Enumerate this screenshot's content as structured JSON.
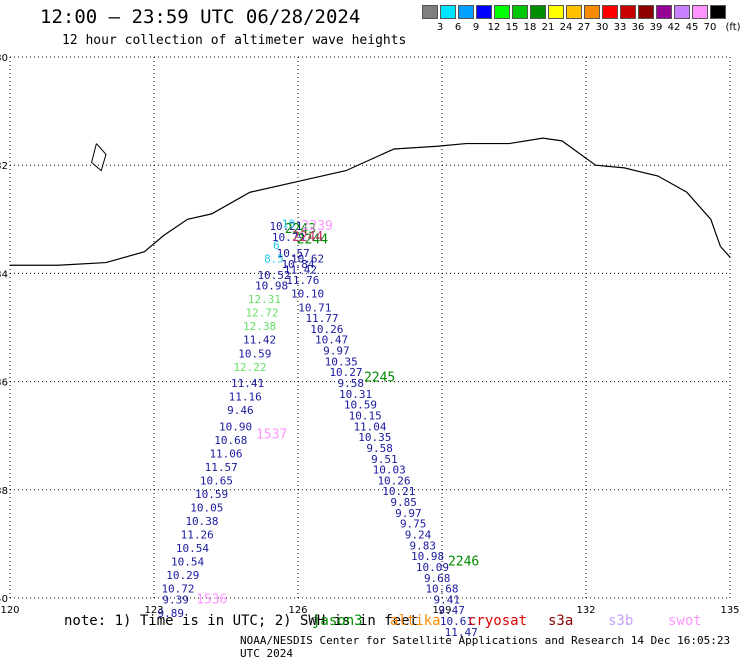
{
  "title": "12:00 – 23:59 UTC 06/28/2024",
  "subtitle": "12 hour collection of altimeter wave heights",
  "legend": {
    "unit": "(ft)",
    "bins": [
      {
        "label": "3",
        "color": "#7f7f7f"
      },
      {
        "label": "6",
        "color": "#00e5ff"
      },
      {
        "label": "9",
        "color": "#00a0ff"
      },
      {
        "label": "12",
        "color": "#0000ff"
      },
      {
        "label": "15",
        "color": "#00ff00"
      },
      {
        "label": "18",
        "color": "#00c800"
      },
      {
        "label": "21",
        "color": "#008c00"
      },
      {
        "label": "24",
        "color": "#ffff00"
      },
      {
        "label": "27",
        "color": "#ffc000"
      },
      {
        "label": "30",
        "color": "#ff8c00"
      },
      {
        "label": "33",
        "color": "#ff0000"
      },
      {
        "label": "36",
        "color": "#c80000"
      },
      {
        "label": "39",
        "color": "#8c0000"
      },
      {
        "label": "42",
        "color": "#960096"
      },
      {
        "label": "45",
        "color": "#c882ff"
      },
      {
        "label": "70",
        "color": "#ff96ff"
      },
      {
        "label": "",
        "color": "#000000"
      }
    ]
  },
  "axes": {
    "lat_labels": [
      "-30",
      "-32",
      "-34",
      "-36",
      "-38",
      "-40"
    ],
    "lon_labels": [
      "120",
      "123",
      "126",
      "129",
      "132",
      "135"
    ]
  },
  "map_data": {
    "lon_range": [
      120,
      135
    ],
    "lat_range": [
      -30,
      -40
    ],
    "gridlines": "dotted",
    "coastline": [
      [
        120.0,
        -33.85
      ],
      [
        121.0,
        -33.85
      ],
      [
        122.0,
        -33.8
      ],
      [
        122.8,
        -33.6
      ],
      [
        123.2,
        -33.3
      ],
      [
        123.7,
        -33.0
      ],
      [
        124.2,
        -32.9
      ],
      [
        125.0,
        -32.5
      ],
      [
        126.0,
        -32.3
      ],
      [
        127.0,
        -32.1
      ],
      [
        128.0,
        -31.7
      ],
      [
        128.9,
        -31.65
      ],
      [
        129.5,
        -31.6
      ],
      [
        130.4,
        -31.6
      ],
      [
        131.1,
        -31.5
      ],
      [
        131.5,
        -31.55
      ],
      [
        132.2,
        -32.0
      ],
      [
        132.8,
        -32.05
      ],
      [
        133.5,
        -32.2
      ],
      [
        134.1,
        -32.5
      ],
      [
        134.6,
        -33.0
      ],
      [
        134.8,
        -33.5
      ],
      [
        135.0,
        -33.7
      ]
    ],
    "island": [
      [
        121.8,
        -31.6
      ],
      [
        122.0,
        -31.8
      ],
      [
        121.9,
        -32.1
      ],
      [
        121.7,
        -31.95
      ],
      [
        121.8,
        -31.6
      ]
    ],
    "tracks": [
      {
        "satellite": "jason3",
        "color": "#1a1aa0",
        "points": [
          {
            "lon": 125.75,
            "lat": -33.2,
            "v": "10.21"
          },
          {
            "lon": 125.8,
            "lat": -33.4,
            "v": "10.79"
          },
          {
            "lon": 125.9,
            "lat": -33.7,
            "v": "10.57"
          },
          {
            "lon": 126.0,
            "lat": -33.9,
            "v": "10.84"
          },
          {
            "lon": 126.05,
            "lat": -34.0,
            "v": "11.42"
          },
          {
            "lon": 126.1,
            "lat": -34.2,
            "v": "11.76"
          },
          {
            "lon": 126.2,
            "lat": -34.45,
            "v": "10.10"
          },
          {
            "lon": 126.35,
            "lat": -34.7,
            "v": "10.71"
          },
          {
            "lon": 126.5,
            "lat": -34.9,
            "v": "11.77"
          },
          {
            "lon": 126.6,
            "lat": -35.1,
            "v": "10.26"
          },
          {
            "lon": 126.7,
            "lat": -35.3,
            "v": "10.47"
          },
          {
            "lon": 126.8,
            "lat": -35.5,
            "v": "9.97"
          },
          {
            "lon": 126.9,
            "lat": -35.7,
            "v": "10.35"
          },
          {
            "lon": 127.0,
            "lat": -35.9,
            "v": "10.27"
          },
          {
            "lon": 127.1,
            "lat": -36.1,
            "v": "9.58"
          },
          {
            "lon": 127.2,
            "lat": -36.3,
            "v": "10.31"
          },
          {
            "lon": 127.3,
            "lat": -36.5,
            "v": "10.59"
          },
          {
            "lon": 127.4,
            "lat": -36.7,
            "v": "10.15"
          },
          {
            "lon": 127.5,
            "lat": -36.9,
            "v": "11.04"
          },
          {
            "lon": 127.6,
            "lat": -37.1,
            "v": "10.35"
          },
          {
            "lon": 127.7,
            "lat": -37.3,
            "v": "9.58"
          },
          {
            "lon": 127.8,
            "lat": -37.5,
            "v": "9.51"
          },
          {
            "lon": 127.9,
            "lat": -37.7,
            "v": "10.03"
          },
          {
            "lon": 128.0,
            "lat": -37.9,
            "v": "10.26"
          },
          {
            "lon": 128.1,
            "lat": -38.1,
            "v": "10.21"
          },
          {
            "lon": 128.2,
            "lat": -38.3,
            "v": "9.85"
          },
          {
            "lon": 128.3,
            "lat": -38.5,
            "v": "9.97"
          },
          {
            "lon": 128.4,
            "lat": -38.7,
            "v": "9.75"
          },
          {
            "lon": 128.5,
            "lat": -38.9,
            "v": "9.24"
          },
          {
            "lon": 128.6,
            "lat": -39.1,
            "v": "9.83"
          },
          {
            "lon": 128.7,
            "lat": -39.3,
            "v": "10.98"
          },
          {
            "lon": 128.8,
            "lat": -39.5,
            "v": "10.09"
          },
          {
            "lon": 128.9,
            "lat": -39.7,
            "v": "9.68"
          },
          {
            "lon": 129.0,
            "lat": -39.9,
            "v": "10.68"
          },
          {
            "lon": 129.1,
            "lat": -40.1,
            "v": "9.41"
          },
          {
            "lon": 129.2,
            "lat": -40.3,
            "v": "9.47"
          },
          {
            "lon": 129.3,
            "lat": -40.5,
            "v": "10.61"
          },
          {
            "lon": 129.4,
            "lat": -40.7,
            "v": "11.47"
          }
        ]
      },
      {
        "satellite": "west",
        "color": "#1a1aa0",
        "points": [
          {
            "lon": 125.5,
            "lat": -34.1,
            "v": "10.52"
          },
          {
            "lon": 125.45,
            "lat": -34.3,
            "v": "10.98"
          },
          {
            "lon": 125.2,
            "lat": -35.3,
            "v": "11.42"
          },
          {
            "lon": 125.1,
            "lat": -35.55,
            "v": "10.59"
          },
          {
            "lon": 124.95,
            "lat": -36.1,
            "v": "11.41"
          },
          {
            "lon": 124.9,
            "lat": -36.35,
            "v": "11.16"
          },
          {
            "lon": 124.8,
            "lat": -36.6,
            "v": "9.46"
          },
          {
            "lon": 124.7,
            "lat": -36.9,
            "v": "10.90"
          },
          {
            "lon": 124.6,
            "lat": -37.15,
            "v": "10.68"
          },
          {
            "lon": 124.5,
            "lat": -37.4,
            "v": "11.06"
          },
          {
            "lon": 124.4,
            "lat": -37.65,
            "v": "11.57"
          },
          {
            "lon": 124.3,
            "lat": -37.9,
            "v": "10.65"
          },
          {
            "lon": 124.2,
            "lat": -38.15,
            "v": "10.59"
          },
          {
            "lon": 124.1,
            "lat": -38.4,
            "v": "10.05"
          },
          {
            "lon": 124.0,
            "lat": -38.65,
            "v": "10.38"
          },
          {
            "lon": 123.9,
            "lat": -38.9,
            "v": "11.26"
          },
          {
            "lon": 123.8,
            "lat": -39.15,
            "v": "10.54"
          },
          {
            "lon": 123.7,
            "lat": -39.4,
            "v": "10.54"
          },
          {
            "lon": 123.6,
            "lat": -39.65,
            "v": "10.29"
          },
          {
            "lon": 123.5,
            "lat": -39.9,
            "v": "10.72"
          },
          {
            "lon": 123.45,
            "lat": -40.1,
            "v": "9.39"
          },
          {
            "lon": 123.35,
            "lat": -40.35,
            "v": "9.89"
          }
        ]
      },
      {
        "satellite": "light",
        "color": "#66e066",
        "points": [
          {
            "lon": 125.3,
            "lat": -34.55,
            "v": "12.31"
          },
          {
            "lon": 125.25,
            "lat": -34.8,
            "v": "12.72"
          },
          {
            "lon": 125.2,
            "lat": -35.05,
            "v": "12.38"
          },
          {
            "lon": 125.0,
            "lat": -35.8,
            "v": "12.22"
          }
        ]
      },
      {
        "satellite": "cyan",
        "color": "#22c8e8",
        "points": [
          {
            "lon": 125.8,
            "lat": -33.15,
            "v": "10"
          },
          {
            "lon": 125.55,
            "lat": -33.55,
            "v": "6"
          },
          {
            "lon": 125.5,
            "lat": -33.8,
            "v": "8.5"
          }
        ]
      },
      {
        "satellite": "cyan2",
        "color": "#1a1aa0",
        "points": [
          {
            "lon": 126.2,
            "lat": -33.8,
            "v": "10.62"
          }
        ]
      }
    ],
    "pass_labels": [
      {
        "lon": 126.05,
        "lat": -33.25,
        "text": "2243",
        "color": "#008c00"
      },
      {
        "lon": 126.4,
        "lat": -33.2,
        "text": "2239",
        "color": "#ff96ff"
      },
      {
        "lon": 126.3,
        "lat": -33.45,
        "text": "2244",
        "color": "#008c00"
      },
      {
        "lon": 126.2,
        "lat": -33.4,
        "text": "2244",
        "color": "#c8326e"
      },
      {
        "lon": 127.7,
        "lat": -36.0,
        "text": "2245",
        "color": "#008c00"
      },
      {
        "lon": 125.45,
        "lat": -37.05,
        "text": "1537",
        "color": "#ff96ff"
      },
      {
        "lon": 129.45,
        "lat": -39.4,
        "text": "2246",
        "color": "#008c00"
      },
      {
        "lon": 124.2,
        "lat": -40.1,
        "text": "1536",
        "color": "#ff96ff"
      }
    ]
  },
  "note": {
    "prefix": "note: 1) Time is in UTC; 2) SWH is in feet",
    "satellites": [
      {
        "name": "jason3",
        "color": "#008c00"
      },
      {
        "name": "altika",
        "color": "#ff8c00"
      },
      {
        "name": "cryosat",
        "color": "#e00000"
      },
      {
        "name": "s3a",
        "color": "#8c0000"
      },
      {
        "name": "s3b",
        "color": "#c8a0ff"
      },
      {
        "name": "swot",
        "color": "#ff96ff"
      }
    ]
  },
  "footer": "NOAA/NESDIS Center for Satellite Applications and Research   14 Dec 16:05:23 UTC 2024"
}
